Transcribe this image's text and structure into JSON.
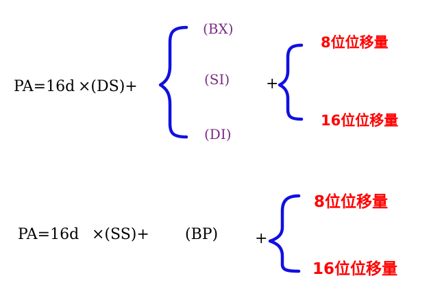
{
  "formula1": {
    "lhs": "PA=16d",
    "multiply": "×(DS)+",
    "registers": [
      "(BX)",
      "(SI)",
      "(DI)"
    ],
    "plus": "+",
    "displacements": [
      "8位位移量",
      "16位位移量"
    ]
  },
  "formula2": {
    "lhs": "PA=16d",
    "multiply": "×(SS)+",
    "register": "(BP)",
    "plus": "+",
    "displacements": [
      "8位位移量",
      "16位位移量"
    ]
  },
  "colors": {
    "text": "#000000",
    "register": "#7b2c85",
    "displacement": "#ff0000",
    "brace": "#1010e0"
  }
}
